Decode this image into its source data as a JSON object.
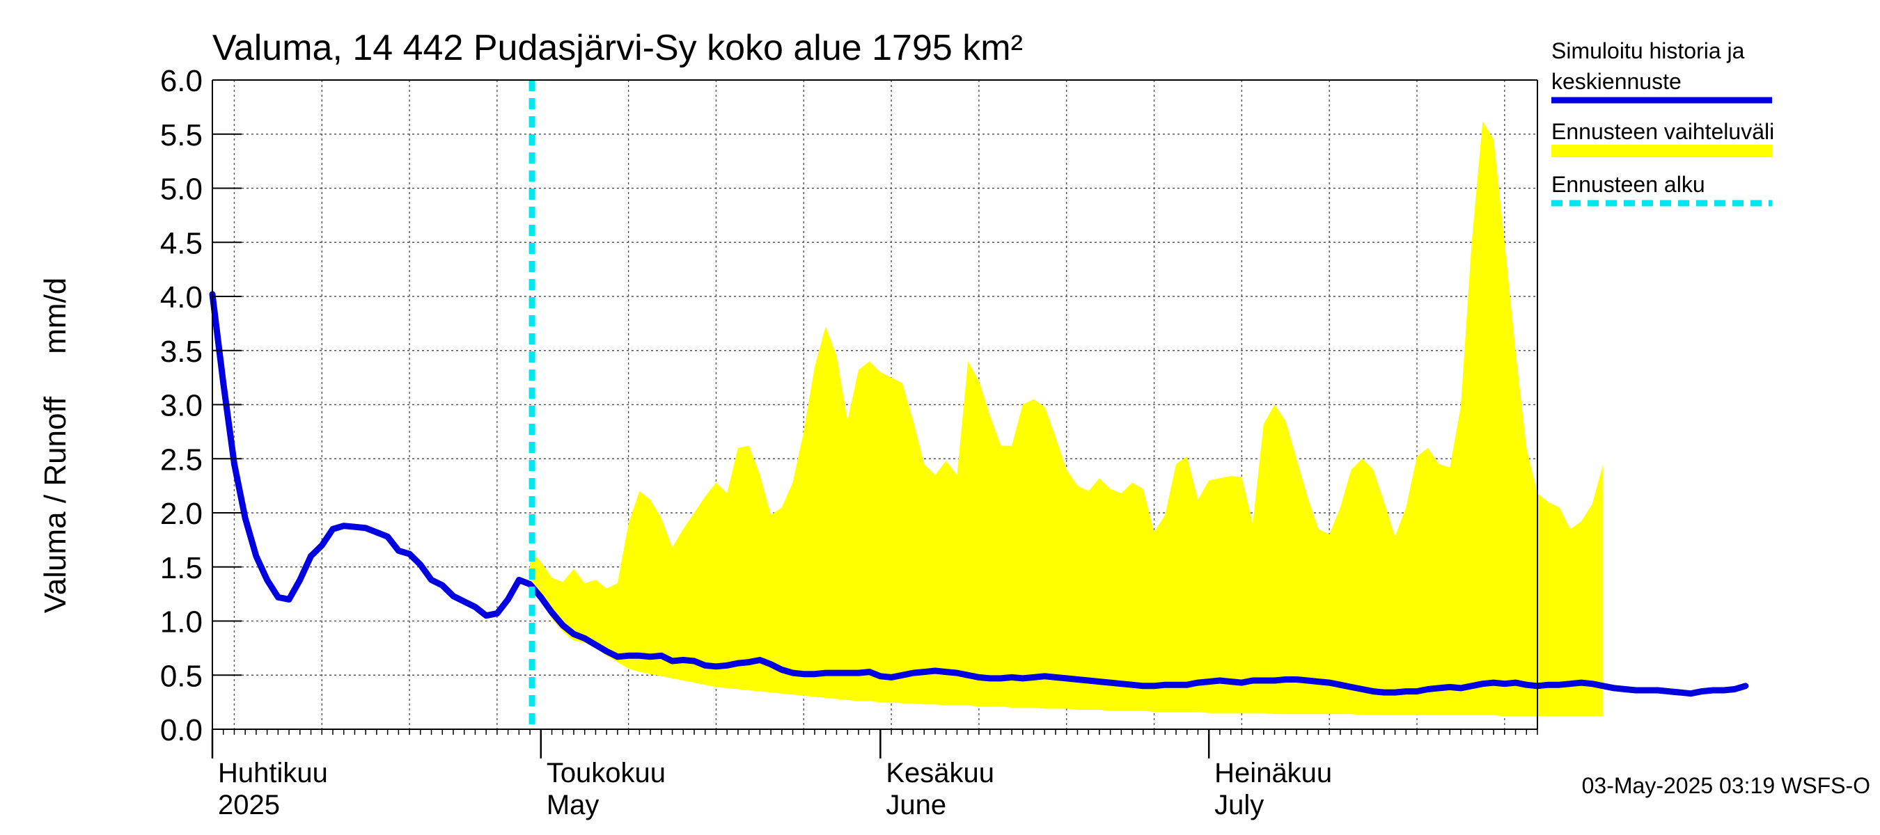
{
  "chart_data": {
    "type": "line",
    "title": "Valuma, 14 442 Pudasjärvi-Sy koko alue 1795 km²",
    "ylabel": "Valuma / Runoff     mm/d",
    "ylim": [
      0,
      6
    ],
    "yticks": [
      "0.0",
      "0.5",
      "1.0",
      "1.5",
      "2.0",
      "2.5",
      "3.0",
      "3.5",
      "4.0",
      "4.5",
      "5.0",
      "5.5",
      "6.0"
    ],
    "x_start": "2025-04-01",
    "x_end": "2025-07-31",
    "forecast_start_day": 29,
    "months": [
      {
        "fi": "Huhtikuu",
        "en": "2025",
        "start_day": 0
      },
      {
        "fi": "Toukokuu",
        "en": "May",
        "start_day": 30
      },
      {
        "fi": "Kesäkuu",
        "en": "June",
        "start_day": 61
      },
      {
        "fi": "Heinäkuu",
        "en": "July",
        "start_day": 91
      }
    ],
    "series": [
      {
        "name": "Simuloitu historia ja keskiennuste",
        "color": "#0000e0",
        "values": [
          4.02,
          3.2,
          2.45,
          1.95,
          1.6,
          1.38,
          1.22,
          1.2,
          1.38,
          1.6,
          1.7,
          1.85,
          1.88,
          1.87,
          1.86,
          1.82,
          1.78,
          1.65,
          1.62,
          1.52,
          1.38,
          1.33,
          1.23,
          1.18,
          1.13,
          1.05,
          1.07,
          1.2,
          1.38,
          1.34,
          1.22,
          1.08,
          0.96,
          0.88,
          0.84,
          0.78,
          0.72,
          0.67,
          0.68,
          0.68,
          0.67,
          0.68,
          0.63,
          0.64,
          0.63,
          0.59,
          0.58,
          0.59,
          0.61,
          0.62,
          0.64,
          0.6,
          0.55,
          0.52,
          0.51,
          0.51,
          0.52,
          0.52,
          0.52,
          0.52,
          0.53,
          0.49,
          0.48,
          0.5,
          0.52,
          0.53,
          0.54,
          0.53,
          0.52,
          0.5,
          0.48,
          0.47,
          0.47,
          0.48,
          0.47,
          0.48,
          0.49,
          0.48,
          0.47,
          0.46,
          0.45,
          0.44,
          0.43,
          0.42,
          0.41,
          0.4,
          0.4,
          0.41,
          0.41,
          0.41,
          0.43,
          0.44,
          0.45,
          0.44,
          0.43,
          0.45,
          0.45,
          0.45,
          0.46,
          0.46,
          0.45,
          0.44,
          0.43,
          0.41,
          0.39,
          0.37,
          0.35,
          0.34,
          0.34,
          0.35,
          0.35,
          0.37,
          0.38,
          0.39,
          0.38,
          0.4,
          0.42,
          0.43,
          0.42,
          0.43,
          0.41,
          0.4,
          0.41,
          0.41,
          0.42,
          0.43,
          0.42,
          0.4,
          0.38,
          0.37,
          0.36,
          0.36,
          0.36,
          0.35,
          0.34,
          0.33,
          0.35,
          0.36,
          0.36,
          0.37,
          0.4
        ]
      },
      {
        "name": "Ennusteen vaihteluväli",
        "color": "#ffff00",
        "start_day": 29,
        "upper": [
          1.65,
          1.55,
          1.4,
          1.36,
          1.48,
          1.35,
          1.38,
          1.3,
          1.35,
          1.9,
          2.2,
          2.12,
          1.95,
          1.68,
          1.85,
          2.0,
          2.15,
          2.28,
          2.18,
          2.6,
          2.62,
          2.35,
          1.98,
          2.05,
          2.28,
          2.75,
          3.35,
          3.72,
          3.45,
          2.85,
          3.32,
          3.4,
          3.3,
          3.25,
          3.2,
          2.85,
          2.45,
          2.35,
          2.48,
          2.35,
          3.4,
          3.22,
          2.9,
          2.62,
          2.62,
          3.0,
          3.05,
          2.98,
          2.7,
          2.4,
          2.25,
          2.2,
          2.32,
          2.22,
          2.18,
          2.28,
          2.22,
          1.82,
          1.98,
          2.45,
          2.52,
          2.12,
          2.3,
          2.32,
          2.34,
          2.33,
          1.9,
          2.82,
          3.0,
          2.85,
          2.5,
          2.15,
          1.85,
          1.8,
          2.05,
          2.4,
          2.5,
          2.4,
          2.1,
          1.78,
          2.05,
          2.52,
          2.6,
          2.45,
          2.42,
          2.98,
          4.5,
          5.62,
          5.45,
          4.5,
          3.5,
          2.6,
          2.18,
          2.1,
          2.05,
          1.85,
          1.92,
          2.08,
          2.45
        ],
        "lower": [
          1.42,
          1.2,
          1.02,
          0.9,
          0.82,
          0.8,
          0.75,
          0.68,
          0.62,
          0.56,
          0.53,
          0.51,
          0.49,
          0.47,
          0.45,
          0.43,
          0.41,
          0.39,
          0.38,
          0.37,
          0.36,
          0.35,
          0.34,
          0.33,
          0.32,
          0.31,
          0.3,
          0.29,
          0.28,
          0.27,
          0.26,
          0.26,
          0.25,
          0.25,
          0.24,
          0.24,
          0.23,
          0.23,
          0.22,
          0.22,
          0.22,
          0.21,
          0.21,
          0.21,
          0.2,
          0.2,
          0.2,
          0.19,
          0.19,
          0.19,
          0.18,
          0.18,
          0.18,
          0.17,
          0.17,
          0.17,
          0.17,
          0.16,
          0.16,
          0.16,
          0.16,
          0.16,
          0.15,
          0.15,
          0.15,
          0.15,
          0.15,
          0.15,
          0.14,
          0.14,
          0.14,
          0.14,
          0.14,
          0.14,
          0.14,
          0.14,
          0.13,
          0.13,
          0.13,
          0.13,
          0.13,
          0.13,
          0.13,
          0.13,
          0.13,
          0.13,
          0.13,
          0.13,
          0.13,
          0.12,
          0.12,
          0.12,
          0.12,
          0.12,
          0.12,
          0.12,
          0.12,
          0.12,
          0.12
        ]
      },
      {
        "name": "Ennusteen alku",
        "color": "#00e5ee"
      }
    ],
    "legend": {
      "position": "right",
      "history_line1": "Simuloitu historia ja",
      "history_line2": "keskiennuste",
      "range": "Ennusteen vaihteluväli",
      "start": "Ennusteen alku"
    },
    "footer": "03-May-2025 03:19 WSFS-O",
    "grid": true
  }
}
